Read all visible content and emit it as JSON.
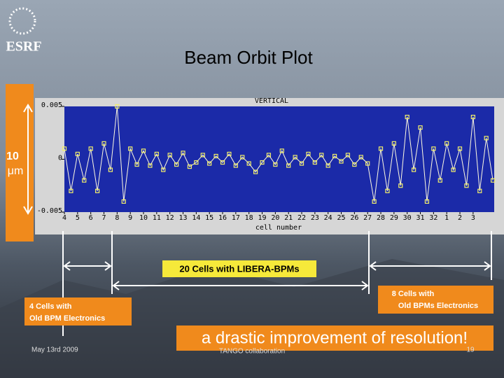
{
  "slide": {
    "logo": "ESRF",
    "title": "Beam Orbit Plot",
    "scale_number": "10",
    "scale_unit": "μm",
    "label_middle": "20 Cells with LIBERA-BPMs",
    "label_left": [
      "4 Cells with",
      "Old BPM Electronics"
    ],
    "label_right": [
      "8 Cells with",
      "Old BPMs Electronics"
    ],
    "headline": "a drastic improvement of resolution!",
    "date": "May 13rd  2009",
    "footer": "TANGO collaboration",
    "page": "19"
  },
  "chart_data": {
    "type": "line",
    "title": "VERTICAL",
    "x_label": "cell number",
    "xlim": [
      4,
      36.6
    ],
    "ylim": [
      -0.005,
      0.005
    ],
    "xticks": [
      4,
      5,
      6,
      7,
      8,
      9,
      10,
      11,
      12,
      13,
      14,
      15,
      16,
      17,
      18,
      19,
      20,
      21,
      22,
      23,
      24,
      25,
      26,
      27,
      28,
      29,
      30,
      31,
      32,
      {
        "value": 33,
        "label": "1"
      },
      {
        "value": 34,
        "label": "2"
      },
      {
        "value": 35,
        "label": "3"
      }
    ],
    "yticks": [
      0.005,
      0,
      -0.005
    ],
    "x": [
      4,
      4.5,
      5,
      5.5,
      6,
      6.5,
      7,
      7.5,
      8,
      8.5,
      9,
      9.5,
      10,
      10.5,
      11,
      11.5,
      12,
      12.5,
      13,
      13.5,
      14,
      14.5,
      15,
      15.5,
      16,
      16.5,
      17,
      17.5,
      18,
      18.5,
      19,
      19.5,
      20,
      20.5,
      21,
      21.5,
      22,
      22.5,
      23,
      23.5,
      24,
      24.5,
      25,
      25.5,
      26,
      26.5,
      27,
      27.5,
      28,
      28.5,
      29,
      29.5,
      30,
      30.5,
      31,
      31.5,
      32,
      32.5,
      33,
      33.5,
      34,
      34.5,
      35,
      35.5,
      36,
      36.5
    ],
    "series": [
      {
        "name": "VERTICAL",
        "color": "#f2ee6a",
        "values": [
          0.001,
          -0.003,
          0.0005,
          -0.002,
          0.001,
          -0.003,
          0.0015,
          -0.001,
          0.005,
          -0.004,
          0.001,
          -0.0005,
          0.0008,
          -0.0006,
          0.0005,
          -0.001,
          0.0004,
          -0.0005,
          0.0006,
          -0.0007,
          -0.0003,
          0.0004,
          -0.0004,
          0.0003,
          -0.0003,
          0.0005,
          -0.0006,
          0.0002,
          -0.0004,
          -0.0012,
          -0.0003,
          0.0004,
          -0.0005,
          0.0008,
          -0.0006,
          0.0002,
          -0.0004,
          0.0005,
          -0.0003,
          0.0004,
          -0.0006,
          0.0003,
          -0.0002,
          0.0004,
          -0.0005,
          0.0002,
          -0.0004,
          -0.004,
          0.001,
          -0.003,
          0.0015,
          -0.0025,
          0.004,
          -0.001,
          0.003,
          -0.004,
          0.001,
          -0.002,
          0.0015,
          -0.001,
          0.001,
          -0.0025,
          0.004,
          -0.003,
          0.002,
          -0.002
        ]
      }
    ]
  }
}
